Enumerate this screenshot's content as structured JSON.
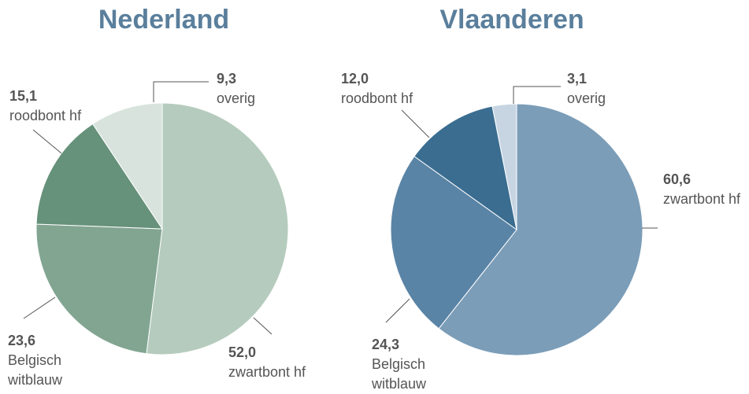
{
  "chart_data": [
    {
      "type": "pie",
      "title": "Nederland",
      "categories": [
        "zwartbont hf",
        "Belgisch witblauw",
        "roodbont hf",
        "overig"
      ],
      "values": [
        52.0,
        23.6,
        15.1,
        9.3
      ],
      "value_labels": [
        "52,0",
        "23,6",
        "15,1",
        "9,3"
      ],
      "colors": [
        "#b5cbbd",
        "#82a592",
        "#66917a",
        "#d7e3dc"
      ]
    },
    {
      "type": "pie",
      "title": "Vlaanderen",
      "categories": [
        "zwartbont hf",
        "Belgisch witblauw",
        "roodbont hf",
        "overig"
      ],
      "values": [
        60.6,
        24.3,
        12.0,
        3.1
      ],
      "value_labels": [
        "60,6",
        "24,3",
        "12,0",
        "3,1"
      ],
      "colors": [
        "#7b9db8",
        "#5a84a6",
        "#3a6d90",
        "#c7d5e3"
      ]
    }
  ]
}
